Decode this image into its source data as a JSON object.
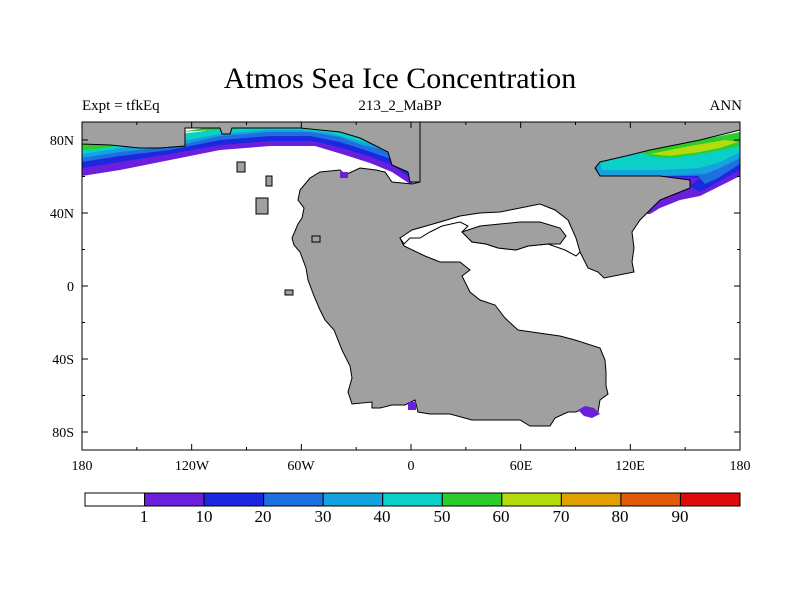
{
  "title": "Atmos Sea Ice Concentration",
  "left_label": "Expt = tfkEq",
  "center_label": "213_2_MaBP",
  "right_label": "ANN",
  "lon_ticks": [
    "180",
    "120W",
    "60W",
    "0",
    "60E",
    "120E",
    "180"
  ],
  "lat_ticks": [
    "80N",
    "40N",
    "0",
    "40S",
    "80S"
  ],
  "colorbar": {
    "labels": [
      "1",
      "10",
      "20",
      "30",
      "40",
      "50",
      "60",
      "70",
      "80",
      "90"
    ],
    "colors": [
      "#ffffff",
      "#6a1fdc",
      "#1c28e0",
      "#1e6fe0",
      "#13a4e0",
      "#0bd0c8",
      "#2ccc2c",
      "#b4dc0c",
      "#e0a000",
      "#e05a0a",
      "#e00a0a"
    ]
  },
  "colors": {
    "land": "#a0a0a0",
    "ocean": "#ffffff"
  }
}
